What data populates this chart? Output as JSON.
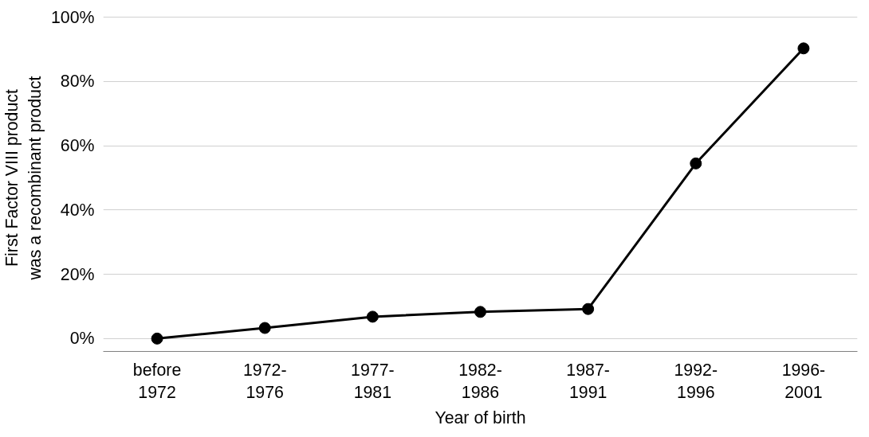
{
  "chart_data": {
    "type": "line",
    "xlabel": "Year of birth",
    "ylabel": "First Factor VIII product\nwas a recombinant product",
    "categories": [
      "before\n1972",
      "1972-\n1976",
      "1977-\n1981",
      "1982-\n1986",
      "1987-\n1991",
      "1992-\n1996",
      "1996-\n2001"
    ],
    "series": [
      {
        "color": "#000000",
        "values": [
          0,
          3.3,
          6.8,
          8.3,
          9.2,
          54.5,
          90.3
        ]
      }
    ],
    "ylim": [
      0,
      100
    ],
    "yticks": [
      {
        "value": 0,
        "label": "0%"
      },
      {
        "value": 20,
        "label": "20%"
      },
      {
        "value": 40,
        "label": "40%"
      },
      {
        "value": 60,
        "label": "60%"
      },
      {
        "value": 80,
        "label": "80%"
      },
      {
        "value": 100,
        "label": "100%"
      }
    ],
    "grid": "y",
    "marker": "circle",
    "line_style": "solid"
  }
}
